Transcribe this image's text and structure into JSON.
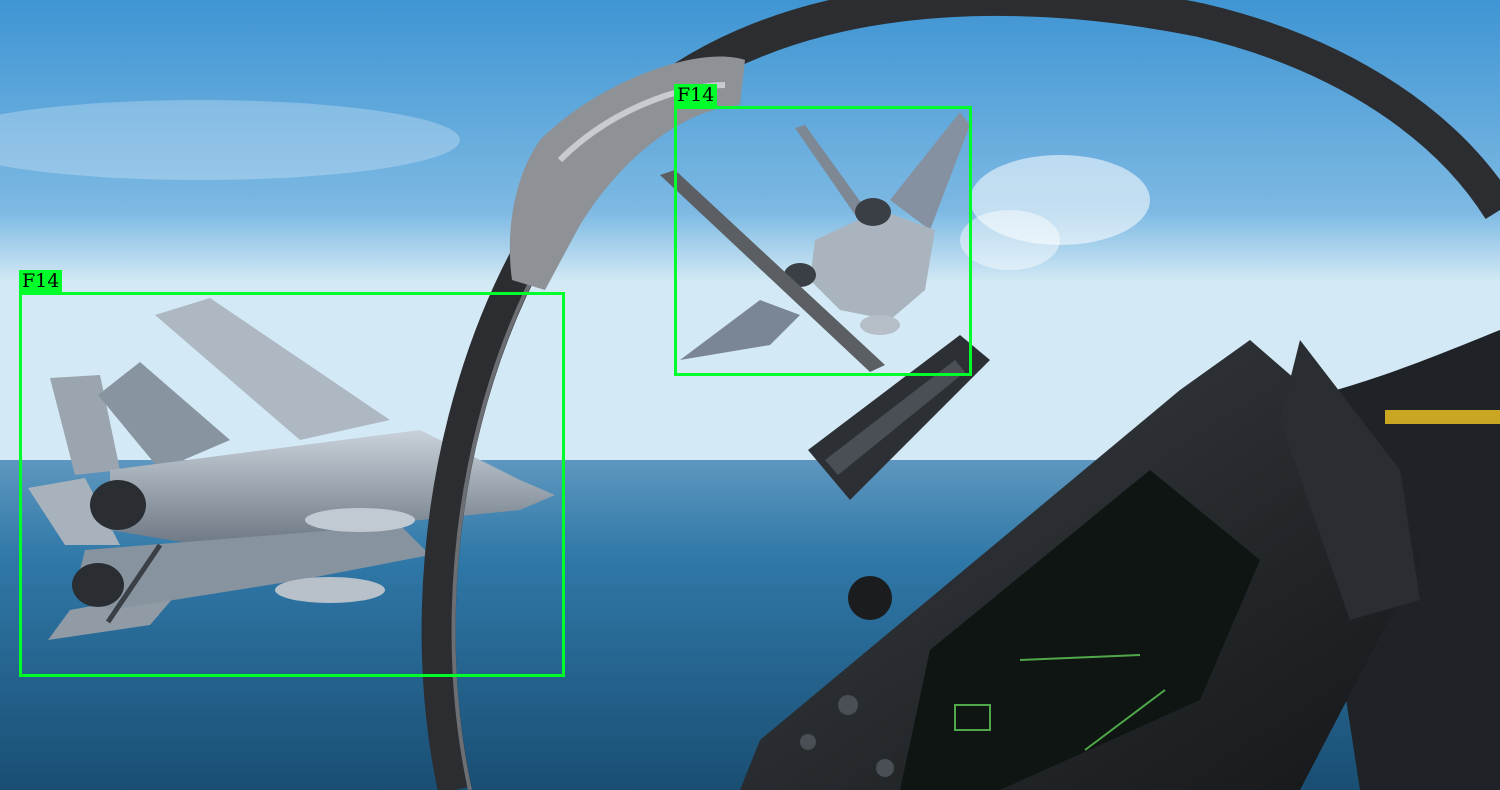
{
  "colors": {
    "box": "#00ff2a",
    "label_bg": "#00ff2a",
    "label_text": "#000000",
    "sky_top": "#4f9fd8",
    "sky_horizon": "#c7e3f2",
    "sea": "#2d6f9c"
  },
  "detections": [
    {
      "id": "det-1",
      "label": "F14"
    },
    {
      "id": "det-2",
      "label": "F14"
    }
  ]
}
